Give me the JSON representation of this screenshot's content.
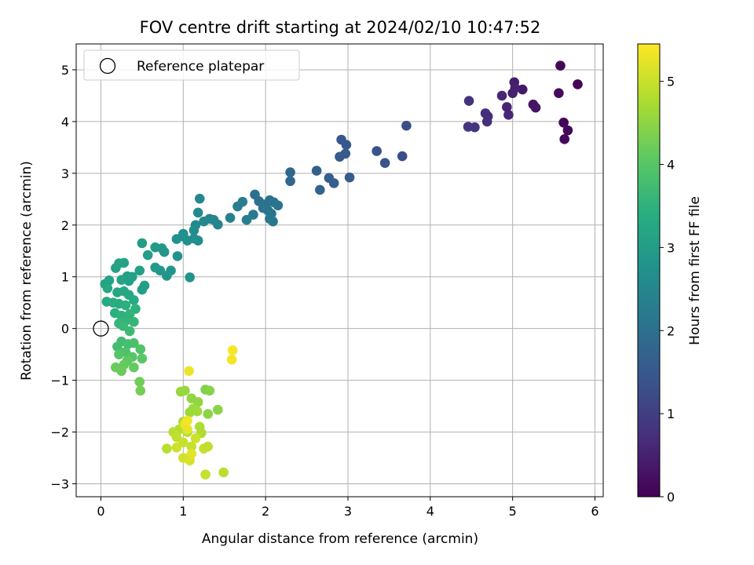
{
  "chart_data": {
    "type": "scatter",
    "title": "FOV centre drift starting at 2024/02/10 10:47:52",
    "xlabel": "Angular distance from reference (arcmin)",
    "ylabel": "Rotation from reference (arcmin)",
    "xlim": [
      -0.3,
      6.1
    ],
    "ylim": [
      -3.25,
      5.5
    ],
    "xticks": [
      "0",
      "1",
      "2",
      "3",
      "4",
      "5",
      "6"
    ],
    "yticks": [
      "−3",
      "−2",
      "−1",
      "0",
      "1",
      "2",
      "3",
      "4",
      "5"
    ],
    "grid": true,
    "legend": {
      "placement": "top-left",
      "label": "Reference platepar",
      "point": {
        "x": 0,
        "y": 0
      }
    },
    "colorbar": {
      "label": "Hours from first FF file",
      "range": [
        0,
        5.45
      ],
      "ticks": [
        "0",
        "1",
        "2",
        "3",
        "4",
        "5"
      ],
      "colormap": "viridis"
    },
    "points": [
      {
        "x": 5.58,
        "y": 5.08,
        "t": 0.1
      },
      {
        "x": 5.79,
        "y": 4.72,
        "t": 0.05
      },
      {
        "x": 5.62,
        "y": 3.98,
        "t": 0.08
      },
      {
        "x": 5.67,
        "y": 3.83,
        "t": 0.1
      },
      {
        "x": 5.63,
        "y": 3.66,
        "t": 0.12
      },
      {
        "x": 5.56,
        "y": 4.55,
        "t": 0.15
      },
      {
        "x": 5.25,
        "y": 4.33,
        "t": 0.3
      },
      {
        "x": 5.28,
        "y": 4.27,
        "t": 0.32
      },
      {
        "x": 5.12,
        "y": 4.62,
        "t": 0.4
      },
      {
        "x": 5.02,
        "y": 4.76,
        "t": 0.45
      },
      {
        "x": 5.0,
        "y": 4.55,
        "t": 0.5
      },
      {
        "x": 5.03,
        "y": 4.65,
        "t": 0.5
      },
      {
        "x": 4.93,
        "y": 4.28,
        "t": 0.55
      },
      {
        "x": 4.95,
        "y": 4.13,
        "t": 0.6
      },
      {
        "x": 4.87,
        "y": 4.5,
        "t": 0.6
      },
      {
        "x": 4.7,
        "y": 4.1,
        "t": 0.7
      },
      {
        "x": 4.67,
        "y": 4.16,
        "t": 0.72
      },
      {
        "x": 4.69,
        "y": 4.0,
        "t": 0.75
      },
      {
        "x": 4.47,
        "y": 4.4,
        "t": 0.8
      },
      {
        "x": 4.46,
        "y": 3.9,
        "t": 0.85
      },
      {
        "x": 4.54,
        "y": 3.89,
        "t": 0.85
      },
      {
        "x": 3.71,
        "y": 3.92,
        "t": 1.3
      },
      {
        "x": 3.35,
        "y": 3.43,
        "t": 1.4
      },
      {
        "x": 3.45,
        "y": 3.2,
        "t": 1.45
      },
      {
        "x": 3.66,
        "y": 3.33,
        "t": 1.35
      },
      {
        "x": 2.92,
        "y": 3.65,
        "t": 1.5
      },
      {
        "x": 2.98,
        "y": 3.55,
        "t": 1.5
      },
      {
        "x": 2.97,
        "y": 3.38,
        "t": 1.55
      },
      {
        "x": 2.9,
        "y": 3.32,
        "t": 1.6
      },
      {
        "x": 3.02,
        "y": 2.92,
        "t": 1.6
      },
      {
        "x": 2.77,
        "y": 2.91,
        "t": 1.65
      },
      {
        "x": 2.83,
        "y": 2.81,
        "t": 1.65
      },
      {
        "x": 2.62,
        "y": 3.05,
        "t": 1.7
      },
      {
        "x": 2.66,
        "y": 2.68,
        "t": 1.75
      },
      {
        "x": 2.3,
        "y": 3.02,
        "t": 1.8
      },
      {
        "x": 2.3,
        "y": 2.85,
        "t": 1.8
      },
      {
        "x": 1.87,
        "y": 2.59,
        "t": 2.0
      },
      {
        "x": 1.92,
        "y": 2.46,
        "t": 2.0
      },
      {
        "x": 2.0,
        "y": 2.4,
        "t": 2.05
      },
      {
        "x": 2.05,
        "y": 2.48,
        "t": 2.05
      },
      {
        "x": 2.1,
        "y": 2.44,
        "t": 2.1
      },
      {
        "x": 2.15,
        "y": 2.38,
        "t": 2.1
      },
      {
        "x": 2.03,
        "y": 2.28,
        "t": 2.1
      },
      {
        "x": 2.07,
        "y": 2.22,
        "t": 2.15
      },
      {
        "x": 2.05,
        "y": 2.12,
        "t": 2.15
      },
      {
        "x": 2.09,
        "y": 2.07,
        "t": 2.2
      },
      {
        "x": 1.97,
        "y": 2.33,
        "t": 2.1
      },
      {
        "x": 1.85,
        "y": 2.2,
        "t": 2.25
      },
      {
        "x": 1.77,
        "y": 2.1,
        "t": 2.3
      },
      {
        "x": 1.72,
        "y": 2.45,
        "t": 2.3
      },
      {
        "x": 1.66,
        "y": 2.36,
        "t": 2.35
      },
      {
        "x": 1.57,
        "y": 2.14,
        "t": 2.4
      },
      {
        "x": 1.42,
        "y": 2.01,
        "t": 2.45
      },
      {
        "x": 1.37,
        "y": 2.1,
        "t": 2.5
      },
      {
        "x": 1.32,
        "y": 2.12,
        "t": 2.5
      },
      {
        "x": 1.25,
        "y": 2.07,
        "t": 2.55
      },
      {
        "x": 1.2,
        "y": 2.51,
        "t": 2.55
      },
      {
        "x": 1.18,
        "y": 2.24,
        "t": 2.6
      },
      {
        "x": 1.15,
        "y": 2.0,
        "t": 2.6
      },
      {
        "x": 1.13,
        "y": 1.9,
        "t": 2.65
      },
      {
        "x": 1.18,
        "y": 1.7,
        "t": 2.65
      },
      {
        "x": 1.13,
        "y": 1.74,
        "t": 2.7
      },
      {
        "x": 1.05,
        "y": 1.7,
        "t": 2.7
      },
      {
        "x": 1.0,
        "y": 1.83,
        "t": 2.7
      },
      {
        "x": 1.0,
        "y": 1.78,
        "t": 2.75
      },
      {
        "x": 0.92,
        "y": 1.73,
        "t": 2.75
      },
      {
        "x": 1.08,
        "y": 0.99,
        "t": 2.8
      },
      {
        "x": 0.93,
        "y": 1.4,
        "t": 2.8
      },
      {
        "x": 0.85,
        "y": 1.12,
        "t": 2.85
      },
      {
        "x": 0.8,
        "y": 1.02,
        "t": 2.85
      },
      {
        "x": 0.77,
        "y": 1.48,
        "t": 2.9
      },
      {
        "x": 0.74,
        "y": 1.55,
        "t": 2.9
      },
      {
        "x": 0.72,
        "y": 1.12,
        "t": 2.9
      },
      {
        "x": 0.66,
        "y": 1.57,
        "t": 2.95
      },
      {
        "x": 0.66,
        "y": 1.18,
        "t": 2.95
      },
      {
        "x": 0.57,
        "y": 1.42,
        "t": 3.0
      },
      {
        "x": 0.5,
        "y": 1.65,
        "t": 3.0
      },
      {
        "x": 0.47,
        "y": 1.12,
        "t": 3.05
      },
      {
        "x": 0.5,
        "y": 0.75,
        "t": 3.05
      },
      {
        "x": 0.53,
        "y": 0.83,
        "t": 3.05
      },
      {
        "x": 0.38,
        "y": 1.0,
        "t": 3.1
      },
      {
        "x": 0.34,
        "y": 0.92,
        "t": 3.1
      },
      {
        "x": 0.32,
        "y": 1.01,
        "t": 3.1
      },
      {
        "x": 0.28,
        "y": 1.27,
        "t": 3.15
      },
      {
        "x": 0.22,
        "y": 1.26,
        "t": 3.15
      },
      {
        "x": 0.18,
        "y": 1.17,
        "t": 3.15
      },
      {
        "x": 0.25,
        "y": 0.94,
        "t": 3.2
      },
      {
        "x": 0.1,
        "y": 0.93,
        "t": 3.2
      },
      {
        "x": 0.05,
        "y": 0.86,
        "t": 3.2
      },
      {
        "x": 0.08,
        "y": 0.78,
        "t": 3.25
      },
      {
        "x": 0.2,
        "y": 0.7,
        "t": 3.25
      },
      {
        "x": 0.28,
        "y": 0.72,
        "t": 3.3
      },
      {
        "x": 0.34,
        "y": 0.65,
        "t": 3.3
      },
      {
        "x": 0.4,
        "y": 0.55,
        "t": 3.35
      },
      {
        "x": 0.07,
        "y": 0.52,
        "t": 3.35
      },
      {
        "x": 0.15,
        "y": 0.5,
        "t": 3.4
      },
      {
        "x": 0.22,
        "y": 0.48,
        "t": 3.4
      },
      {
        "x": 0.3,
        "y": 0.45,
        "t": 3.45
      },
      {
        "x": 0.17,
        "y": 0.3,
        "t": 3.45
      },
      {
        "x": 0.25,
        "y": 0.25,
        "t": 3.5
      },
      {
        "x": 0.42,
        "y": 0.38,
        "t": 3.5
      },
      {
        "x": 0.35,
        "y": 0.28,
        "t": 3.55
      },
      {
        "x": 0.3,
        "y": 0.15,
        "t": 3.55
      },
      {
        "x": 0.22,
        "y": 0.1,
        "t": 3.6
      },
      {
        "x": 0.4,
        "y": 0.13,
        "t": 3.6
      },
      {
        "x": 0.27,
        "y": 0.05,
        "t": 3.65
      },
      {
        "x": 0.35,
        "y": -0.05,
        "t": 3.7
      },
      {
        "x": 0.25,
        "y": -0.25,
        "t": 3.75
      },
      {
        "x": 0.33,
        "y": -0.3,
        "t": 3.8
      },
      {
        "x": 0.2,
        "y": -0.35,
        "t": 3.8
      },
      {
        "x": 0.4,
        "y": -0.28,
        "t": 3.85
      },
      {
        "x": 0.3,
        "y": -0.45,
        "t": 3.9
      },
      {
        "x": 0.48,
        "y": -0.4,
        "t": 3.95
      },
      {
        "x": 0.38,
        "y": -0.55,
        "t": 4.0
      },
      {
        "x": 0.22,
        "y": -0.5,
        "t": 4.0
      },
      {
        "x": 0.5,
        "y": -0.58,
        "t": 4.05
      },
      {
        "x": 0.32,
        "y": -0.62,
        "t": 4.1
      },
      {
        "x": 0.28,
        "y": -0.7,
        "t": 4.15
      },
      {
        "x": 0.4,
        "y": -0.75,
        "t": 4.15
      },
      {
        "x": 0.18,
        "y": -0.75,
        "t": 4.2
      },
      {
        "x": 0.25,
        "y": -0.82,
        "t": 4.2
      },
      {
        "x": 0.47,
        "y": -1.03,
        "t": 4.25
      },
      {
        "x": 0.48,
        "y": -1.2,
        "t": 4.3
      },
      {
        "x": 1.27,
        "y": -1.18,
        "t": 4.4
      },
      {
        "x": 1.32,
        "y": -1.2,
        "t": 4.45
      },
      {
        "x": 1.42,
        "y": -1.57,
        "t": 4.5
      },
      {
        "x": 1.3,
        "y": -1.65,
        "t": 4.5
      },
      {
        "x": 1.18,
        "y": -1.42,
        "t": 4.55
      },
      {
        "x": 1.1,
        "y": -1.35,
        "t": 4.55
      },
      {
        "x": 1.02,
        "y": -1.2,
        "t": 4.6
      },
      {
        "x": 0.97,
        "y": -1.22,
        "t": 4.6
      },
      {
        "x": 1.12,
        "y": -1.55,
        "t": 4.65
      },
      {
        "x": 1.08,
        "y": -1.62,
        "t": 4.65
      },
      {
        "x": 1.17,
        "y": -1.6,
        "t": 4.7
      },
      {
        "x": 1.0,
        "y": -1.8,
        "t": 4.75
      },
      {
        "x": 1.2,
        "y": -1.9,
        "t": 4.8
      },
      {
        "x": 1.22,
        "y": -2.02,
        "t": 4.8
      },
      {
        "x": 1.05,
        "y": -2.0,
        "t": 4.85
      },
      {
        "x": 0.95,
        "y": -1.95,
        "t": 4.85
      },
      {
        "x": 0.88,
        "y": -2.0,
        "t": 4.9
      },
      {
        "x": 0.92,
        "y": -2.1,
        "t": 4.95
      },
      {
        "x": 1.0,
        "y": -2.2,
        "t": 5.0
      },
      {
        "x": 1.1,
        "y": -2.28,
        "t": 5.0
      },
      {
        "x": 1.15,
        "y": -2.12,
        "t": 5.05
      },
      {
        "x": 1.25,
        "y": -2.32,
        "t": 5.0
      },
      {
        "x": 1.3,
        "y": -2.28,
        "t": 4.95
      },
      {
        "x": 0.8,
        "y": -2.32,
        "t": 4.9
      },
      {
        "x": 0.92,
        "y": -2.3,
        "t": 5.05
      },
      {
        "x": 1.0,
        "y": -2.5,
        "t": 5.1
      },
      {
        "x": 1.08,
        "y": -2.55,
        "t": 5.15
      },
      {
        "x": 1.1,
        "y": -2.42,
        "t": 5.2
      },
      {
        "x": 1.05,
        "y": -1.95,
        "t": 5.25
      },
      {
        "x": 1.02,
        "y": -1.85,
        "t": 5.3
      },
      {
        "x": 1.05,
        "y": -1.78,
        "t": 5.35
      },
      {
        "x": 1.27,
        "y": -2.82,
        "t": 5.0
      },
      {
        "x": 1.49,
        "y": -2.78,
        "t": 4.9
      },
      {
        "x": 1.07,
        "y": -0.82,
        "t": 5.3
      },
      {
        "x": 1.59,
        "y": -0.6,
        "t": 5.35
      },
      {
        "x": 1.6,
        "y": -0.42,
        "t": 5.4
      }
    ]
  }
}
